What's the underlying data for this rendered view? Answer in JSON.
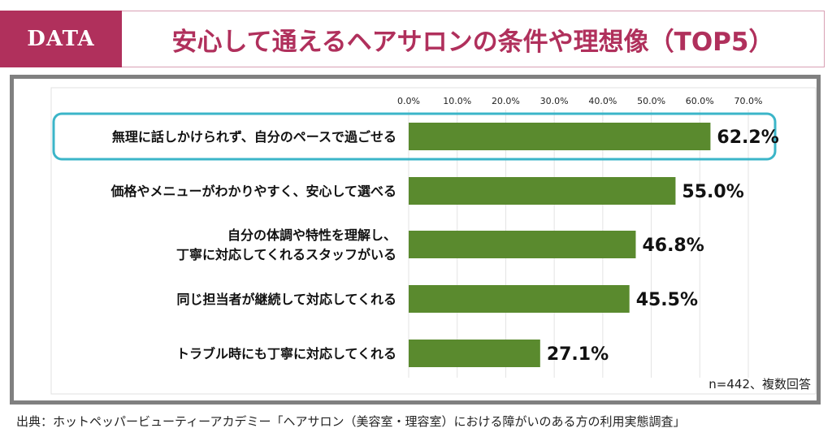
{
  "header": {
    "badge": "DATA",
    "title": "安心して通えるヘアサロンの条件や理想像（TOP5）"
  },
  "chart_data": {
    "type": "bar",
    "orientation": "horizontal",
    "categories": [
      "無理に話しかけられず、自分のペースで過ごせる",
      "価格やメニューがわかりやすく、安心して選べる",
      "自分の体調や特性を理解し、\n丁寧に対応してくれるスタッフがいる",
      "同じ担当者が継続して対応してくれる",
      "トラブル時にも丁寧に対応してくれる"
    ],
    "values": [
      62.2,
      55.0,
      46.8,
      45.5,
      27.1
    ],
    "data_labels": [
      "62.2%",
      "55.0%",
      "46.8%",
      "45.5%",
      "27.1%"
    ],
    "xlim": [
      0,
      70
    ],
    "x_ticks": [
      "0.0%",
      "10.0%",
      "20.0%",
      "30.0%",
      "40.0%",
      "50.0%",
      "60.0%",
      "70.0%"
    ],
    "x_tick_values": [
      0,
      10,
      20,
      30,
      40,
      50,
      60,
      70
    ],
    "axis_position": "top",
    "grid": true,
    "highlighted_category_index": 0,
    "bar_color": "#5a8a2e",
    "highlight_color": "#3bb5c8",
    "note": "n=442、複数回答"
  },
  "source": "出典：ホットペッパービューティーアカデミー「ヘアサロン（美容室・理容室）における障がいのある方の利用実態調査」"
}
